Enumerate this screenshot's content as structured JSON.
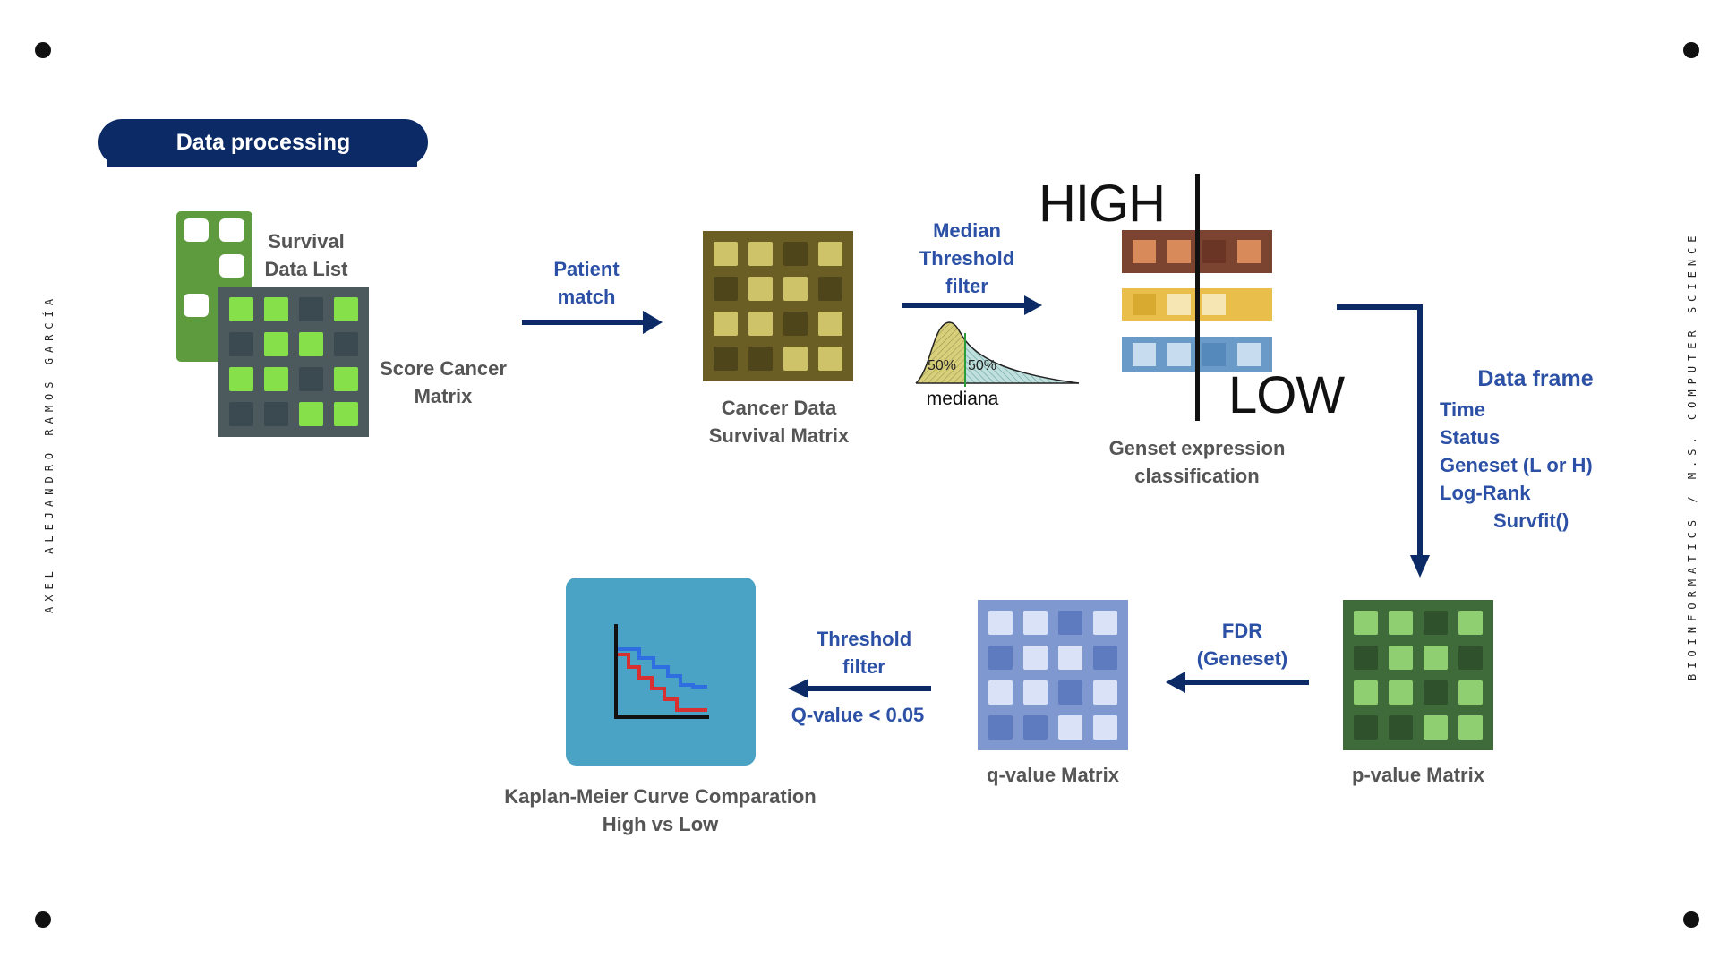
{
  "header": {
    "title": "Data processing"
  },
  "side_labels": {
    "left": "AXEL ALEJANDRO RAMOS GARCÍA",
    "right": "BIOINFORMATICS / M.S. COMPUTER SCIENCE"
  },
  "nodes": {
    "survival_list": [
      "Survival",
      "Data List"
    ],
    "score_cancer": [
      "Score Cancer",
      "Matrix"
    ],
    "cancer_survival": [
      "Cancer Data",
      "Survival Matrix"
    ],
    "genset": [
      "Genset expression",
      "classification"
    ],
    "pvalue": "p-value Matrix",
    "qvalue": "q-value Matrix",
    "km": [
      "Kaplan-Meier Curve Comparation",
      "High vs Low"
    ]
  },
  "edges": {
    "patient_match": [
      "Patient",
      "match"
    ],
    "median_threshold": [
      "Median",
      "Threshold",
      "filter"
    ],
    "fdr": [
      "FDR",
      "(Geneset)"
    ],
    "threshold": [
      "Threshold",
      "filter"
    ],
    "threshold_note": "Q-value < 0.05"
  },
  "distribution": {
    "left_pct": "50%",
    "right_pct": "50%",
    "label": "mediana"
  },
  "classification": {
    "high": "HIGH",
    "low": "LOW"
  },
  "data_frame": {
    "title": "Data frame",
    "items": [
      "Time",
      "Status",
      "Geneset (L or H)",
      "Log-Rank"
    ],
    "extra": "Survfit()"
  },
  "colors": {
    "navy": "#0b2a66",
    "label_blue": "#2b50a5",
    "label_gray": "#555555",
    "km_panel": "#4aa3c4"
  }
}
